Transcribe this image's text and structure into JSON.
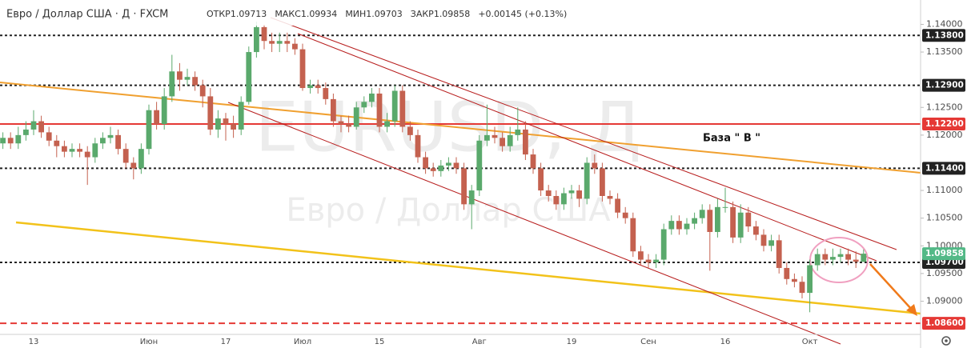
{
  "chart_data": {
    "type": "candlestick",
    "title": "Евро / Доллар США · Д · FXCM",
    "ohlc_header": [
      "ОТКР1.09713",
      "МАКС1.09934",
      "МИН1.09703",
      "ЗАКР1.09858",
      "+0.00145 (+0.13%)"
    ],
    "watermark": [
      "EURUSD, Д",
      "Евро / Доллар США"
    ],
    "annotation": "База  \" В \"",
    "up_color": "#5aa96c",
    "down_color": "#c4614f",
    "ylim": [
      1.084,
      1.1444
    ],
    "yticks": [
      {
        "value": 1.14,
        "label": "1.14000"
      },
      {
        "value": 1.135,
        "label": "1.13500"
      },
      {
        "value": 1.125,
        "label": "1.12500"
      },
      {
        "value": 1.12,
        "label": "1.12000"
      },
      {
        "value": 1.11,
        "label": "1.11000"
      },
      {
        "value": 1.105,
        "label": "1.10500"
      },
      {
        "value": 1.1,
        "label": "1.10000"
      },
      {
        "value": 1.095,
        "label": "1.09500"
      },
      {
        "value": 1.09,
        "label": "1.09000"
      }
    ],
    "levels": [
      {
        "value": 1.138,
        "label": "1.13800",
        "color": "#222222",
        "style": "dotted"
      },
      {
        "value": 1.129,
        "label": "1.12900",
        "color": "#222222",
        "style": "dotted"
      },
      {
        "value": 1.122,
        "label": "1.12200",
        "color": "#e53935",
        "style": "solid"
      },
      {
        "value": 1.114,
        "label": "1.11400",
        "color": "#222222",
        "style": "dotted"
      },
      {
        "value": 1.097,
        "label": "1.09700",
        "color": "#222222",
        "style": "dotted"
      },
      {
        "value": 1.086,
        "label": "1.08600",
        "color": "#e53935",
        "style": "dashed"
      }
    ],
    "last_price": {
      "value": 1.09858,
      "label": "1.09858",
      "color": "#53b987"
    },
    "categories": [
      null,
      null,
      null,
      null,
      "13",
      null,
      null,
      null,
      null,
      null,
      null,
      null,
      null,
      null,
      null,
      null,
      null,
      null,
      null,
      "Июн",
      null,
      null,
      null,
      null,
      null,
      null,
      null,
      null,
      null,
      "17",
      null,
      null,
      null,
      null,
      null,
      null,
      null,
      null,
      null,
      "Июл",
      null,
      null,
      null,
      null,
      null,
      null,
      null,
      null,
      null,
      "15",
      null,
      null,
      null,
      null,
      null,
      null,
      null,
      null,
      null,
      null,
      null,
      null,
      "Авг",
      null,
      null,
      null,
      null,
      null,
      null,
      null,
      null,
      null,
      null,
      null,
      "19",
      null,
      null,
      null,
      null,
      null,
      null,
      null,
      null,
      null,
      "Сен",
      null,
      null,
      null,
      null,
      null,
      null,
      null,
      null,
      null,
      "16",
      null,
      null,
      null,
      null,
      null,
      null,
      null,
      null,
      null,
      null,
      "Окт",
      null,
      null,
      null,
      null,
      null,
      null,
      null
    ],
    "open": [
      1.1185,
      1.1195,
      1.1185,
      1.12,
      1.121,
      1.1225,
      1.1205,
      1.119,
      1.118,
      1.117,
      1.1175,
      1.117,
      1.116,
      1.1185,
      1.1195,
      1.12,
      1.1175,
      1.115,
      1.114,
      1.1175,
      1.1245,
      1.122,
      1.127,
      1.1315,
      1.13,
      1.1305,
      1.129,
      1.127,
      1.121,
      1.123,
      1.122,
      1.121,
      1.126,
      1.135,
      1.1395,
      1.137,
      1.1365,
      1.137,
      1.1365,
      1.1355,
      1.1285,
      1.129,
      1.1285,
      1.1265,
      1.1225,
      1.122,
      1.1215,
      1.125,
      1.126,
      1.1275,
      1.1215,
      1.1225,
      1.128,
      1.1215,
      1.12,
      1.116,
      1.114,
      1.1135,
      1.1145,
      1.115,
      1.114,
      1.1075,
      1.11,
      1.119,
      1.12,
      1.1195,
      1.118,
      1.12,
      1.121,
      1.1165,
      1.114,
      1.11,
      1.109,
      1.1075,
      1.1095,
      1.11,
      1.1085,
      1.115,
      1.114,
      1.109,
      1.1085,
      1.106,
      1.105,
      1.099,
      1.0975,
      1.097,
      1.0975,
      1.103,
      1.1045,
      1.103,
      1.104,
      1.105,
      1.1065,
      1.1025,
      1.107,
      1.107,
      1.1015,
      1.106,
      1.1035,
      1.102,
      1.1,
      1.101,
      1.096,
      1.094,
      1.0935,
      1.0915,
      1.0965,
      1.0985,
      1.0975,
      1.098,
      1.0985,
      1.0975,
      1.09713
    ],
    "high": [
      1.1205,
      1.1205,
      1.1215,
      1.1225,
      1.1245,
      1.1235,
      1.1215,
      1.12,
      1.119,
      1.1185,
      1.1185,
      1.118,
      1.1195,
      1.1205,
      1.1215,
      1.121,
      1.1185,
      1.116,
      1.1185,
      1.1255,
      1.126,
      1.1285,
      1.1345,
      1.133,
      1.132,
      1.1315,
      1.13,
      1.1285,
      1.1245,
      1.124,
      1.1235,
      1.127,
      1.136,
      1.1405,
      1.14,
      1.1385,
      1.1385,
      1.1385,
      1.1375,
      1.1365,
      1.13,
      1.13,
      1.1295,
      1.1275,
      1.1235,
      1.1235,
      1.126,
      1.127,
      1.1285,
      1.1285,
      1.124,
      1.129,
      1.129,
      1.1225,
      1.121,
      1.117,
      1.115,
      1.1155,
      1.116,
      1.116,
      1.115,
      1.111,
      1.12,
      1.1255,
      1.1215,
      1.1205,
      1.1215,
      1.125,
      1.1225,
      1.1175,
      1.115,
      1.111,
      1.11,
      1.1105,
      1.111,
      1.111,
      1.116,
      1.1165,
      1.115,
      1.11,
      1.1095,
      1.107,
      1.106,
      1.1,
      1.0985,
      1.0985,
      1.104,
      1.1055,
      1.1055,
      1.105,
      1.106,
      1.1075,
      1.1075,
      1.1085,
      1.1105,
      1.108,
      1.1075,
      1.107,
      1.1045,
      1.103,
      1.102,
      1.102,
      1.097,
      1.095,
      1.0945,
      1.0975,
      1.0995,
      1.0995,
      1.0995,
      1.0995,
      1.0995,
      1.099,
      1.09934
    ],
    "low": [
      1.1175,
      1.1175,
      1.1175,
      1.119,
      1.12,
      1.1195,
      1.118,
      1.116,
      1.116,
      1.116,
      1.116,
      1.111,
      1.115,
      1.1175,
      1.1185,
      1.1165,
      1.114,
      1.112,
      1.113,
      1.1165,
      1.121,
      1.121,
      1.126,
      1.128,
      1.129,
      1.128,
      1.125,
      1.12,
      1.1195,
      1.119,
      1.1195,
      1.12,
      1.1255,
      1.134,
      1.1355,
      1.135,
      1.135,
      1.135,
      1.1345,
      1.128,
      1.1275,
      1.1275,
      1.1255,
      1.1215,
      1.1205,
      1.1205,
      1.121,
      1.124,
      1.125,
      1.1205,
      1.1205,
      1.1215,
      1.1205,
      1.119,
      1.115,
      1.113,
      1.1125,
      1.1125,
      1.1135,
      1.113,
      1.1065,
      1.103,
      1.109,
      1.118,
      1.1185,
      1.117,
      1.117,
      1.119,
      1.1155,
      1.113,
      1.109,
      1.108,
      1.1065,
      1.1065,
      1.1085,
      1.107,
      1.1075,
      1.113,
      1.108,
      1.1075,
      1.105,
      1.104,
      1.098,
      1.0965,
      1.096,
      1.096,
      1.0965,
      1.102,
      1.102,
      1.102,
      1.103,
      1.104,
      1.0955,
      1.1015,
      1.106,
      1.1005,
      1.1005,
      1.1025,
      1.101,
      1.099,
      1.099,
      1.095,
      1.093,
      1.0925,
      1.0905,
      1.088,
      1.0955,
      1.0965,
      1.0965,
      1.097,
      1.0965,
      1.096,
      1.09703
    ],
    "close": [
      1.1195,
      1.1185,
      1.12,
      1.121,
      1.1225,
      1.1205,
      1.119,
      1.118,
      1.117,
      1.1175,
      1.117,
      1.116,
      1.1185,
      1.1195,
      1.12,
      1.1175,
      1.115,
      1.114,
      1.1175,
      1.1245,
      1.122,
      1.127,
      1.1315,
      1.13,
      1.1305,
      1.129,
      1.127,
      1.121,
      1.123,
      1.122,
      1.121,
      1.126,
      1.135,
      1.1395,
      1.137,
      1.1365,
      1.137,
      1.1365,
      1.1355,
      1.1285,
      1.129,
      1.1285,
      1.1265,
      1.1225,
      1.122,
      1.1215,
      1.125,
      1.126,
      1.1275,
      1.1215,
      1.1225,
      1.128,
      1.1215,
      1.12,
      1.116,
      1.114,
      1.1135,
      1.1145,
      1.115,
      1.114,
      1.1075,
      1.11,
      1.119,
      1.12,
      1.1195,
      1.118,
      1.12,
      1.121,
      1.1165,
      1.114,
      1.11,
      1.109,
      1.1075,
      1.1095,
      1.11,
      1.1085,
      1.115,
      1.114,
      1.109,
      1.1085,
      1.106,
      1.105,
      1.099,
      1.0975,
      1.097,
      1.0975,
      1.103,
      1.1045,
      1.103,
      1.104,
      1.105,
      1.1065,
      1.1025,
      1.107,
      1.107,
      1.1015,
      1.106,
      1.1035,
      1.102,
      1.1,
      1.101,
      1.096,
      1.094,
      1.0935,
      1.0915,
      1.0965,
      1.0985,
      1.0975,
      1.098,
      1.0985,
      1.0975,
      1.09713,
      1.09858
    ]
  }
}
